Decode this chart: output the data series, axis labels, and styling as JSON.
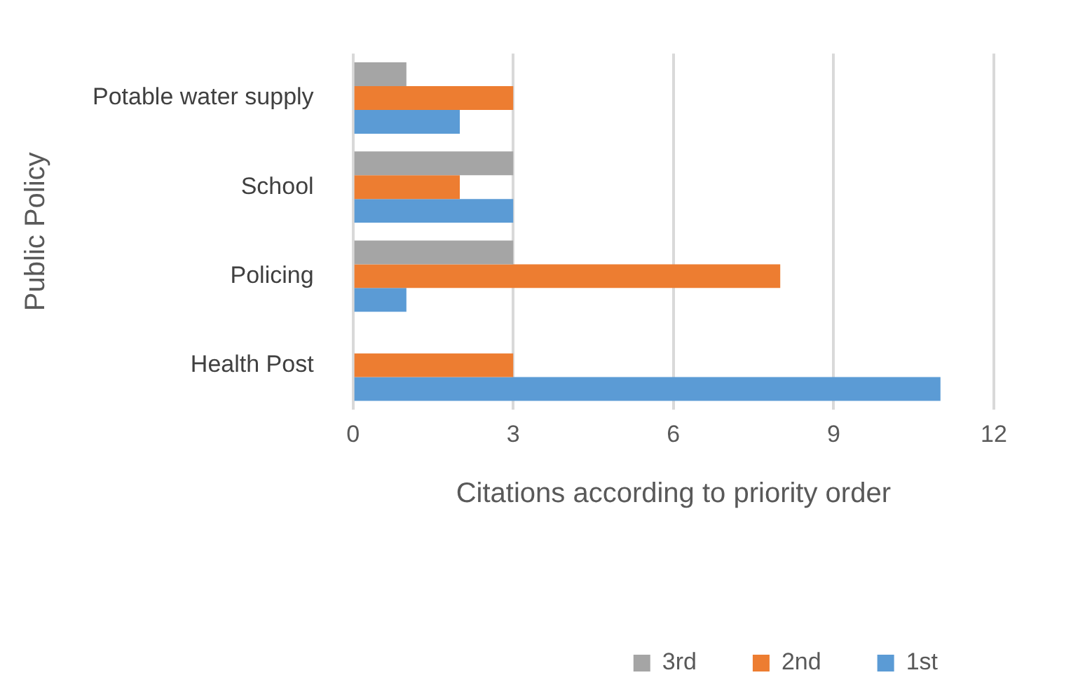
{
  "chart_data": {
    "type": "bar",
    "orientation": "horizontal",
    "xlabel": "Citations according to priority order",
    "ylabel": "Public Policy",
    "categories": [
      "Potable water supply",
      "School",
      "Policing",
      "Health Post"
    ],
    "series": [
      {
        "name": "3rd",
        "color": "#a5a5a5",
        "values": [
          1,
          3,
          3,
          0
        ]
      },
      {
        "name": "2nd",
        "color": "#ed7d31",
        "values": [
          3,
          2,
          8,
          3
        ]
      },
      {
        "name": "1st",
        "color": "#5b9bd5",
        "values": [
          2,
          3,
          1,
          11
        ]
      }
    ],
    "xlim": [
      0,
      12
    ],
    "xticks": [
      0,
      3,
      6,
      9,
      12
    ],
    "grid": "x",
    "legend": "bottom right"
  }
}
